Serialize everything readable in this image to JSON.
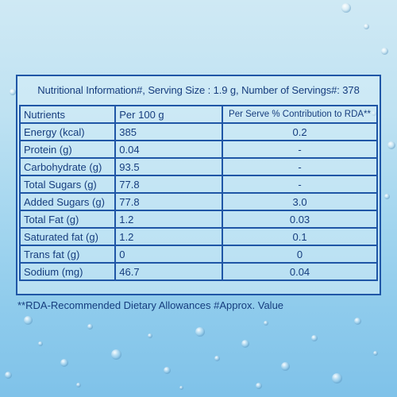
{
  "title": "Nutritional Information#, Serving Size : 1.9 g, Number of Servings#: 378",
  "headers": [
    "Nutrients",
    "Per 100 g",
    "Per Serve % Contribution to RDA**"
  ],
  "rows": [
    [
      "Energy (kcal)",
      "385",
      "0.2"
    ],
    [
      "Protein (g)",
      "0.04",
      "-"
    ],
    [
      "Carbohydrate (g)",
      "93.5",
      "-"
    ],
    [
      "Total Sugars (g)",
      "77.8",
      "-"
    ],
    [
      "Added Sugars (g)",
      "77.8",
      "3.0"
    ],
    [
      "Total Fat (g)",
      "1.2",
      "0.03"
    ],
    [
      "Saturated fat (g)",
      "1.2",
      "0.1"
    ],
    [
      "Trans fat (g)",
      "0",
      "0"
    ],
    [
      "Sodium (mg)",
      "46.7",
      "0.04"
    ]
  ],
  "footnote": "**RDA-Recommended Dietary Allowances  #Approx. Value",
  "colors": {
    "text": "#163d7e",
    "border": "#1f56a6",
    "background": "#a4d6ef"
  }
}
